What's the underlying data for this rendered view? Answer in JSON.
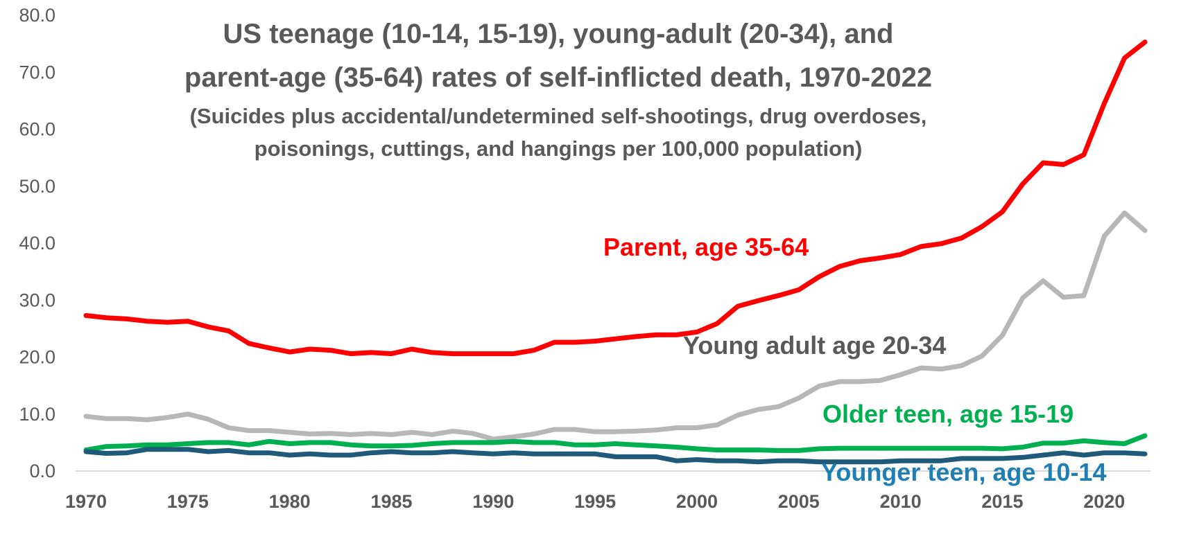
{
  "chart_data": {
    "type": "line",
    "title_lines": [
      "US teenage (10-14, 15-19), young-adult (20-34), and",
      "parent-age (35-64) rates of self-inflicted death, 1970-2022"
    ],
    "subtitle_lines": [
      "(Suicides plus accidental/undetermined self-shootings, drug overdoses,",
      "poisonings, cuttings, and hangings per 100,000 population)"
    ],
    "xlabel": "",
    "ylabel": "",
    "ylim": [
      0,
      80
    ],
    "xlim": [
      1970,
      2022
    ],
    "y_ticks": [
      "0.0",
      "10.0",
      "20.0",
      "30.0",
      "40.0",
      "50.0",
      "60.0",
      "70.0",
      "80.0"
    ],
    "x_ticks": [
      "1970",
      "1975",
      "1980",
      "1985",
      "1990",
      "1995",
      "2000",
      "2005",
      "2010",
      "2015",
      "2020"
    ],
    "grid": false,
    "legend": "inline labels",
    "x": [
      1970,
      1971,
      1972,
      1973,
      1974,
      1975,
      1976,
      1977,
      1978,
      1979,
      1980,
      1981,
      1982,
      1983,
      1984,
      1985,
      1986,
      1987,
      1988,
      1989,
      1990,
      1991,
      1992,
      1993,
      1994,
      1995,
      1996,
      1997,
      1998,
      1999,
      2000,
      2001,
      2002,
      2003,
      2004,
      2005,
      2006,
      2007,
      2008,
      2009,
      2010,
      2011,
      2012,
      2013,
      2014,
      2015,
      2016,
      2017,
      2018,
      2019,
      2020,
      2021,
      2022
    ],
    "series": [
      {
        "name": "Parent, age 35-64",
        "color": "#ff0000",
        "values": [
          27.3,
          26.9,
          26.7,
          26.3,
          26.1,
          26.3,
          25.3,
          24.6,
          22.4,
          21.6,
          20.9,
          21.4,
          21.2,
          20.6,
          20.8,
          20.6,
          21.4,
          20.8,
          20.6,
          20.6,
          20.6,
          20.6,
          21.2,
          22.6,
          22.6,
          22.8,
          23.2,
          23.6,
          23.9,
          23.9,
          24.4,
          25.9,
          28.9,
          29.9,
          30.8,
          31.8,
          34.1,
          35.9,
          36.9,
          37.4,
          38.0,
          39.4,
          39.9,
          40.9,
          42.9,
          45.5,
          50.4,
          54.1,
          53.8,
          55.5,
          64.5,
          72.5,
          75.3
        ]
      },
      {
        "name": "Young adult age 20-34",
        "color": "#b7b7b7",
        "values": [
          9.6,
          9.2,
          9.2,
          9.0,
          9.4,
          10.0,
          9.1,
          7.6,
          7.1,
          7.1,
          6.8,
          6.5,
          6.6,
          6.4,
          6.6,
          6.4,
          6.8,
          6.4,
          7.0,
          6.6,
          5.6,
          6.0,
          6.5,
          7.3,
          7.3,
          6.9,
          6.9,
          7.0,
          7.2,
          7.6,
          7.6,
          8.1,
          9.8,
          10.8,
          11.3,
          12.8,
          14.9,
          15.7,
          15.7,
          15.9,
          16.9,
          18.1,
          17.9,
          18.5,
          20.2,
          23.8,
          30.4,
          33.4,
          30.5,
          30.8,
          41.2,
          45.3,
          42.2
        ]
      },
      {
        "name": "Older teen, age 15-19",
        "color": "#00b050",
        "values": [
          3.7,
          4.3,
          4.4,
          4.6,
          4.6,
          4.8,
          5.0,
          5.0,
          4.6,
          5.2,
          4.8,
          5.0,
          5.0,
          4.6,
          4.4,
          4.4,
          4.5,
          4.8,
          5.0,
          5.0,
          5.0,
          5.2,
          5.0,
          5.0,
          4.6,
          4.6,
          4.8,
          4.6,
          4.4,
          4.2,
          3.9,
          3.7,
          3.7,
          3.7,
          3.6,
          3.6,
          3.9,
          4.0,
          4.0,
          4.0,
          4.0,
          4.0,
          4.0,
          4.0,
          4.0,
          3.9,
          4.2,
          4.9,
          4.9,
          5.3,
          5.0,
          4.8,
          6.2
        ]
      },
      {
        "name": "Younger teen, age 10-14",
        "color": "#1f5a7a",
        "values": [
          3.4,
          3.1,
          3.2,
          3.8,
          3.8,
          3.8,
          3.4,
          3.6,
          3.2,
          3.2,
          2.8,
          3.0,
          2.8,
          2.8,
          3.2,
          3.4,
          3.2,
          3.2,
          3.4,
          3.2,
          3.0,
          3.2,
          3.0,
          3.0,
          3.0,
          3.0,
          2.5,
          2.5,
          2.5,
          1.8,
          2.0,
          1.8,
          1.8,
          1.6,
          1.8,
          1.8,
          1.6,
          1.6,
          1.6,
          1.6,
          1.8,
          1.8,
          1.8,
          2.2,
          2.2,
          2.2,
          2.4,
          2.8,
          3.2,
          2.8,
          3.2,
          3.2,
          3.0
        ]
      }
    ],
    "label_colors": {
      "Parent, age 35-64": "#ff0000",
      "Young adult age 20-34": "#595959",
      "Older teen, age 15-19": "#00b050",
      "Younger teen, age 10-14": "#1f7fb5"
    },
    "axis_line_color": "#d9d9d9",
    "text_color": "#595959"
  }
}
